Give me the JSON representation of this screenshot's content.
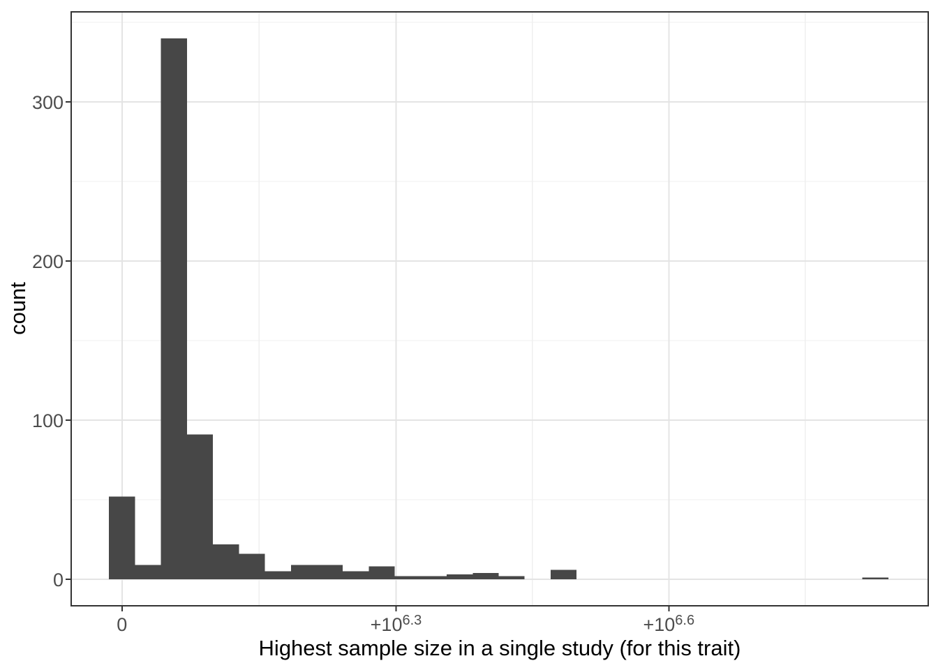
{
  "figure": {
    "background_color": "#ffffff",
    "panel_background_color": "#ffffff",
    "panel_border_color": "#333333",
    "grid_major_color": "#e4e4e4",
    "grid_minor_color": "#efefef",
    "tick_mark_color": "#333333",
    "tick_label_color": "#4d4d4d",
    "axis_title_color": "#000000"
  },
  "chart_data": {
    "type": "bar",
    "subtype": "histogram",
    "title": "",
    "xlabel": "Highest sample size in a single study (for this trait)",
    "ylabel": "count",
    "bar_color": "#474747",
    "legend": "none",
    "grid": true,
    "n_bins": 30,
    "bin_width": 189137,
    "bin_centers": "k * bin_width for k = 0..29 (first bin centered at 0)",
    "counts": [
      52,
      9,
      340,
      91,
      22,
      16,
      5,
      9,
      9,
      5,
      8,
      2,
      2,
      3,
      4,
      2,
      0,
      6,
      0,
      0,
      0,
      0,
      0,
      0,
      0,
      0,
      0,
      0,
      0,
      1
    ],
    "x_ticks": [
      {
        "value": 0,
        "base": "0",
        "sup": ""
      },
      {
        "value": 1995262,
        "base": "+10",
        "sup": "6.3"
      },
      {
        "value": 3981072,
        "base": "+10",
        "sup": "6.6"
      }
    ],
    "x_tick_display": [
      "0",
      "+10^6.3",
      "+10^6.6"
    ],
    "x_minor_gridlines": [
      997631,
      2988167,
      4973977
    ],
    "y_ticks": [
      0,
      100,
      200,
      300
    ],
    "y_minor_gridlines": [
      50,
      150,
      250,
      350
    ],
    "xlim": [
      -370000,
      5870000
    ],
    "ylim": [
      -16.7,
      356.6
    ]
  }
}
